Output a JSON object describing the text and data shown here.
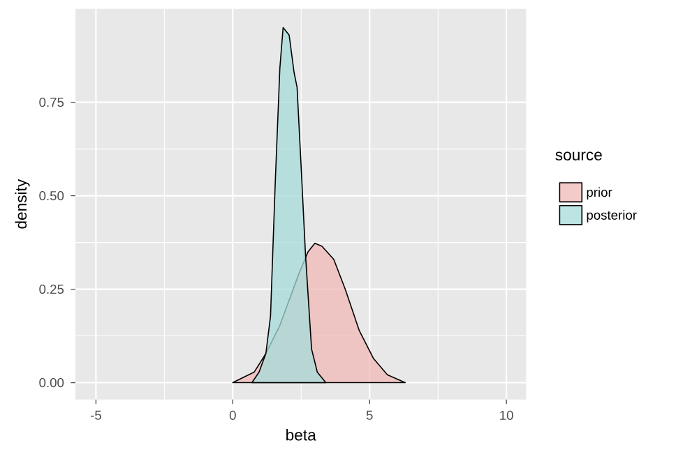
{
  "chart_data": {
    "type": "area",
    "xlabel": "beta",
    "ylabel": "density",
    "legend_title": "source",
    "legend": "right",
    "grid": true,
    "xlim": [
      -5.75,
      10.72
    ],
    "ylim": [
      -0.045,
      1.0
    ],
    "xticks": [
      -5,
      0,
      5,
      10
    ],
    "yticks": [
      {
        "value": 0,
        "label": "0.00"
      },
      {
        "value": 0.25,
        "label": "0.25"
      },
      {
        "value": 0.5,
        "label": "0.50"
      },
      {
        "value": 0.75,
        "label": "0.75"
      }
    ],
    "series": [
      {
        "name": "prior",
        "color": "#f0b9b7",
        "x": [
          0,
          0.36,
          0.78,
          1.21,
          1.72,
          2.41,
          2.75,
          3.0,
          3.26,
          3.69,
          4.11,
          4.62,
          5.14,
          5.65,
          6.3
        ],
        "values": [
          0,
          0.013,
          0.028,
          0.078,
          0.153,
          0.29,
          0.35,
          0.373,
          0.365,
          0.33,
          0.25,
          0.14,
          0.065,
          0.021,
          0
        ]
      },
      {
        "name": "posterior",
        "color": "#a6dbd9",
        "x": [
          0.7,
          0.96,
          1.21,
          1.38,
          1.55,
          1.72,
          1.84,
          2.06,
          2.24,
          2.35,
          2.49,
          2.66,
          2.88,
          3.09,
          3.4
        ],
        "values": [
          0,
          0.028,
          0.078,
          0.178,
          0.53,
          0.84,
          0.95,
          0.93,
          0.83,
          0.79,
          0.59,
          0.34,
          0.09,
          0.028,
          0
        ]
      }
    ]
  }
}
